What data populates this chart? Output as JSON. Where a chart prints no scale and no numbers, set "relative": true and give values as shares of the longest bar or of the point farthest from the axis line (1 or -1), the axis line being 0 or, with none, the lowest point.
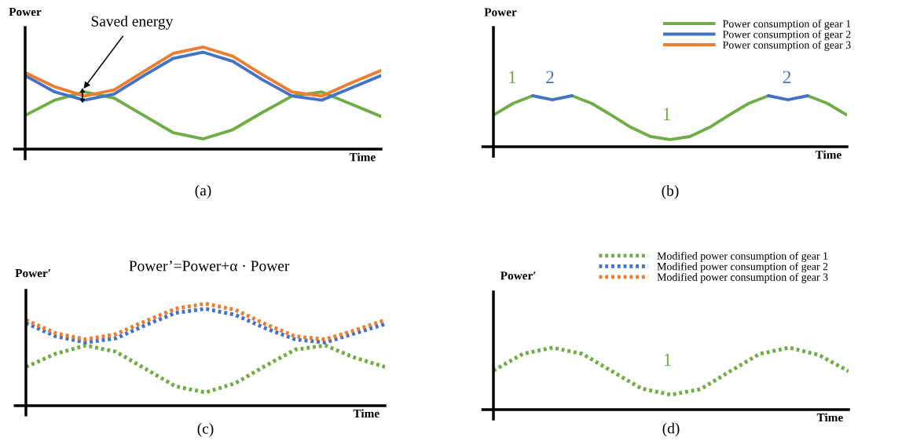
{
  "chart_data": [
    {
      "type": "line",
      "title": "(a)",
      "ylabel": "Power",
      "xlabel": "Time",
      "relative": true,
      "legend": false,
      "marker": "none",
      "categories": [
        null,
        null,
        null,
        null,
        null,
        null,
        null,
        null,
        null,
        null,
        null,
        null,
        null
      ],
      "series": [
        {
          "color": "#70ad47",
          "line_style": "solid",
          "values": [
            0.33,
            0.48,
            0.56,
            0.5,
            0.33,
            0.16,
            0.1,
            0.19,
            0.36,
            0.52,
            0.56,
            0.44,
            0.32
          ]
        },
        {
          "color": "#4472c4",
          "line_style": "solid",
          "values": [
            0.72,
            0.56,
            0.48,
            0.54,
            0.72,
            0.89,
            0.95,
            0.86,
            0.68,
            0.52,
            0.48,
            0.6,
            0.72
          ]
        },
        {
          "color": "#ed7d31",
          "line_style": "solid",
          "values": [
            0.75,
            0.61,
            0.52,
            0.58,
            0.76,
            0.94,
            1.0,
            0.91,
            0.73,
            0.56,
            0.52,
            0.65,
            0.77
          ]
        }
      ],
      "annotations": [
        "Saved energy"
      ]
    },
    {
      "type": "line",
      "title": "(b)",
      "ylabel": "Power",
      "xlabel": "Time",
      "relative": true,
      "legend": "top right",
      "marker": "none",
      "categories": [
        null,
        null,
        null,
        null,
        null,
        null,
        null,
        null,
        null,
        null,
        null,
        null,
        null,
        null,
        null,
        null,
        null,
        null,
        null
      ],
      "series": [
        {
          "name": "Power consumption of gear 1",
          "color": "#70ad47",
          "line_style": "solid",
          "values": [
            0.62,
            0.85,
            1.0,
            null,
            1.0,
            0.85,
            0.62,
            0.38,
            0.2,
            0.14,
            0.2,
            0.38,
            0.62,
            0.85,
            1.0,
            null,
            1.0,
            0.85,
            0.62
          ]
        },
        {
          "name": "Power consumption of gear 2",
          "color": "#4472c4",
          "line_style": "solid",
          "values": [
            null,
            null,
            1.0,
            0.92,
            1.0,
            null,
            null,
            null,
            null,
            null,
            null,
            null,
            null,
            null,
            1.0,
            0.92,
            1.0,
            null,
            null
          ]
        },
        {
          "name": "Power consumption of gear 3",
          "color": "#ed7d31",
          "line_style": "solid",
          "values": [
            null,
            null,
            null,
            null,
            null,
            null,
            null,
            null,
            null,
            null,
            null,
            null,
            null,
            null,
            null,
            null,
            null,
            null,
            null
          ]
        }
      ],
      "annotations": [
        "1",
        "2",
        "1",
        "2"
      ]
    },
    {
      "type": "line",
      "title": "(c)",
      "ylabel": "Power′",
      "xlabel": "Time",
      "relative": true,
      "legend": false,
      "marker": "none",
      "categories": [
        null,
        null,
        null,
        null,
        null,
        null,
        null,
        null,
        null,
        null,
        null,
        null,
        null
      ],
      "series": [
        {
          "color": "#70ad47",
          "line_style": "dotted",
          "values": [
            0.38,
            0.51,
            0.59,
            0.53,
            0.36,
            0.19,
            0.13,
            0.22,
            0.39,
            0.55,
            0.59,
            0.47,
            0.38
          ]
        },
        {
          "color": "#4472c4",
          "line_style": "dotted",
          "values": [
            0.81,
            0.68,
            0.62,
            0.66,
            0.79,
            0.91,
            0.95,
            0.89,
            0.76,
            0.65,
            0.62,
            0.71,
            0.8
          ]
        },
        {
          "color": "#ed7d31",
          "line_style": "dotted",
          "values": [
            0.84,
            0.71,
            0.65,
            0.7,
            0.83,
            0.95,
            1.0,
            0.94,
            0.8,
            0.68,
            0.65,
            0.74,
            0.84
          ]
        }
      ],
      "annotations": [
        "Power’=Power+α · Power"
      ]
    },
    {
      "type": "line",
      "title": "(d)",
      "ylabel": "Power′",
      "xlabel": "Time",
      "relative": true,
      "legend": "top",
      "marker": "none",
      "categories": [
        null,
        null,
        null,
        null,
        null,
        null,
        null,
        null,
        null,
        null,
        null,
        null,
        null
      ],
      "series": [
        {
          "name": "Modified power consumption of gear 1",
          "color": "#70ad47",
          "line_style": "dotted",
          "values": [
            0.63,
            0.9,
            1.0,
            0.9,
            0.62,
            0.34,
            0.24,
            0.33,
            0.62,
            0.9,
            1.0,
            0.88,
            0.62
          ]
        },
        {
          "name": "Modified power consumption of gear 2",
          "color": "#4472c4",
          "line_style": "dotted",
          "values": [
            null,
            null,
            null,
            null,
            null,
            null,
            null,
            null,
            null,
            null,
            null,
            null,
            null
          ]
        },
        {
          "name": "Modified power consumption of gear 3",
          "color": "#ed7d31",
          "line_style": "dotted",
          "values": [
            null,
            null,
            null,
            null,
            null,
            null,
            null,
            null,
            null,
            null,
            null,
            null,
            null
          ]
        }
      ],
      "annotations": [
        "1"
      ]
    }
  ]
}
